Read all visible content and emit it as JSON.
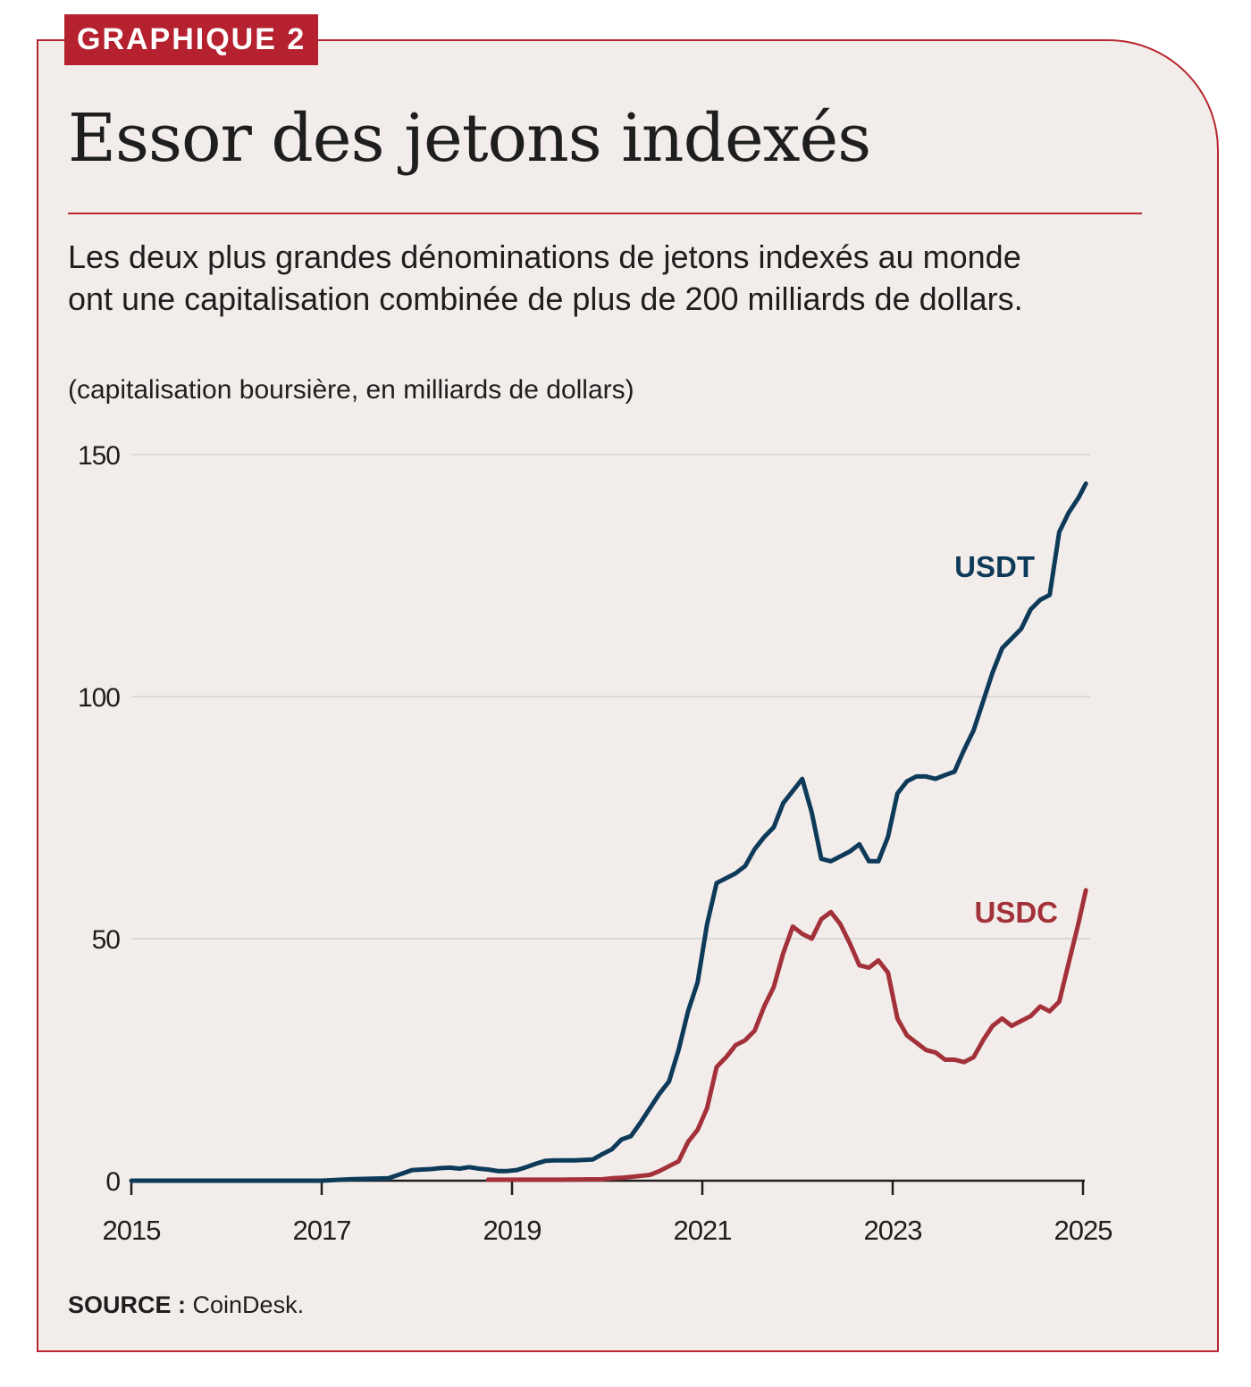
{
  "badge": "GRAPHIQUE 2",
  "title": "Essor des jetons indexés",
  "subtitle": "Les deux plus grandes dénominations de jetons indexés au monde ont une capitalisation combinée de plus de 200 milliards de dollars.",
  "units": "(capitalisation boursière, en milliards de dollars)",
  "source_label": "SOURCE :",
  "source_text": "CoinDesk.",
  "colors": {
    "usdt": "#0e3a5a",
    "usdc": "#a3313a",
    "accent": "#b5212f",
    "grid": "#d9d9d9",
    "background": "#f2edea"
  },
  "chart_data": {
    "type": "line",
    "title": "Essor des jetons indexés",
    "xlabel": "",
    "ylabel": "capitalisation boursière, en milliards de dollars",
    "xlim": [
      2015,
      2025
    ],
    "ylim": [
      0,
      150
    ],
    "yticks": [
      "0",
      "50",
      "100",
      "150"
    ],
    "xticks": [
      "2015",
      "2017",
      "2019",
      "2021",
      "2023",
      "2025"
    ],
    "grid": true,
    "series": [
      {
        "name": "USDT",
        "label": "USDT",
        "x": [
          2015.0,
          2017.0,
          2017.3,
          2017.7,
          2017.85,
          2017.95,
          2018.05,
          2018.15,
          2018.25,
          2018.35,
          2018.45,
          2018.55,
          2018.65,
          2018.75,
          2018.85,
          2018.95,
          2019.05,
          2019.15,
          2019.25,
          2019.35,
          2019.45,
          2019.55,
          2019.65,
          2019.75,
          2019.85,
          2019.95,
          2020.05,
          2020.15,
          2020.25,
          2020.35,
          2020.45,
          2020.55,
          2020.65,
          2020.75,
          2020.85,
          2020.95,
          2021.05,
          2021.15,
          2021.25,
          2021.35,
          2021.45,
          2021.55,
          2021.65,
          2021.75,
          2021.85,
          2021.95,
          2022.05,
          2022.15,
          2022.25,
          2022.35,
          2022.45,
          2022.55,
          2022.65,
          2022.75,
          2022.85,
          2022.95,
          2023.05,
          2023.15,
          2023.25,
          2023.35,
          2023.45,
          2023.55,
          2023.65,
          2023.75,
          2023.85,
          2023.95,
          2024.05,
          2024.15,
          2024.25,
          2024.35,
          2024.45,
          2024.55,
          2024.65,
          2024.75,
          2024.85,
          2024.95,
          2025.03
        ],
        "values": [
          0,
          0,
          0.3,
          0.5,
          1.5,
          2.2,
          2.3,
          2.4,
          2.6,
          2.7,
          2.5,
          2.8,
          2.5,
          2.3,
          2.0,
          2.0,
          2.2,
          2.8,
          3.5,
          4.1,
          4.2,
          4.2,
          4.2,
          4.3,
          4.4,
          5.5,
          6.5,
          8.5,
          9.2,
          12.0,
          15.0,
          18.0,
          20.5,
          27.0,
          35.0,
          41.0,
          53.0,
          61.5,
          62.5,
          63.5,
          65.0,
          68.5,
          71.0,
          73.0,
          78.0,
          80.5,
          83.0,
          76.0,
          66.5,
          66.0,
          67.0,
          68.0,
          69.5,
          66.0,
          66.0,
          71.0,
          80.0,
          82.5,
          83.5,
          83.5,
          83.0,
          83.8,
          84.5,
          89.0,
          93.0,
          99.0,
          105.0,
          110.0,
          112.0,
          114.0,
          118.0,
          120.0,
          121.0,
          134.0,
          138.0,
          141.0,
          144.0
        ]
      },
      {
        "name": "USDC",
        "label": "USDC",
        "x": [
          2018.75,
          2019.0,
          2019.5,
          2019.95,
          2020.05,
          2020.15,
          2020.25,
          2020.35,
          2020.45,
          2020.55,
          2020.65,
          2020.75,
          2020.85,
          2020.95,
          2021.05,
          2021.15,
          2021.25,
          2021.35,
          2021.45,
          2021.55,
          2021.65,
          2021.75,
          2021.85,
          2021.95,
          2022.05,
          2022.15,
          2022.25,
          2022.35,
          2022.45,
          2022.55,
          2022.65,
          2022.75,
          2022.85,
          2022.95,
          2023.05,
          2023.15,
          2023.25,
          2023.35,
          2023.45,
          2023.55,
          2023.65,
          2023.75,
          2023.85,
          2023.95,
          2024.05,
          2024.15,
          2024.25,
          2024.35,
          2024.45,
          2024.55,
          2024.65,
          2024.75,
          2024.85,
          2024.95,
          2025.03
        ],
        "values": [
          0.2,
          0.2,
          0.2,
          0.3,
          0.5,
          0.6,
          0.8,
          1.0,
          1.2,
          2.0,
          3.0,
          4.0,
          8.0,
          10.5,
          15.0,
          23.5,
          25.5,
          28.0,
          29.0,
          31.0,
          36.0,
          40.0,
          47.0,
          52.5,
          51.0,
          50.0,
          54.0,
          55.5,
          53.0,
          49.0,
          44.5,
          44.0,
          45.5,
          43.0,
          33.5,
          30.0,
          28.5,
          27.0,
          26.5,
          25.0,
          25.0,
          24.5,
          25.5,
          29.0,
          32.0,
          33.5,
          32.0,
          33.0,
          34.0,
          36.0,
          35.0,
          37.0,
          45.0,
          53.0,
          60.0
        ]
      }
    ]
  }
}
